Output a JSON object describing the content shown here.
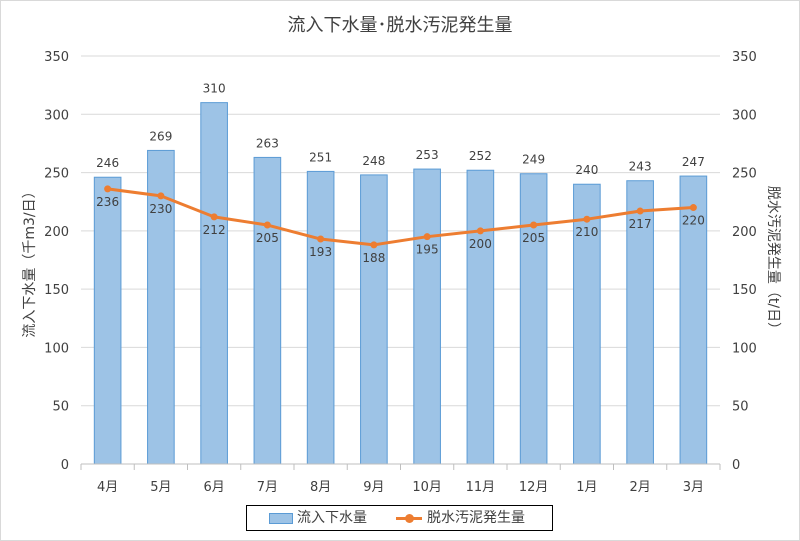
{
  "chart_data": {
    "type": "bar",
    "title": "流入下水量･脱水汚泥発生量",
    "categories": [
      "4月",
      "5月",
      "6月",
      "7月",
      "8月",
      "9月",
      "10月",
      "11月",
      "12月",
      "1月",
      "2月",
      "3月"
    ],
    "series": [
      {
        "name": "流入下水量",
        "type": "bar",
        "axis": "left",
        "values": [
          246,
          269,
          310,
          263,
          251,
          248,
          253,
          252,
          249,
          240,
          243,
          247
        ]
      },
      {
        "name": "脱水汚泥発生量",
        "type": "line",
        "axis": "right",
        "values": [
          236,
          230,
          212,
          205,
          193,
          188,
          195,
          200,
          205,
          210,
          217,
          220
        ]
      }
    ],
    "ylabel": "流入下水量（千m3/日）",
    "y2label": "脱水汚泥発生量（t/日）",
    "ylim": [
      0,
      350
    ],
    "y2lim": [
      0,
      350
    ],
    "yticks": [
      "0",
      "50",
      "100",
      "150",
      "200",
      "250",
      "300",
      "350"
    ],
    "y2ticks": [
      "0",
      "50",
      "100",
      "150",
      "200",
      "250",
      "300",
      "350"
    ],
    "grid": true,
    "legend": "bottom",
    "colors": {
      "bar_fill": "#9dc3e6",
      "bar_stroke": "#5b9bd5",
      "line": "#ed7d31",
      "grid": "#d9d9d9",
      "text": "#404040"
    }
  }
}
